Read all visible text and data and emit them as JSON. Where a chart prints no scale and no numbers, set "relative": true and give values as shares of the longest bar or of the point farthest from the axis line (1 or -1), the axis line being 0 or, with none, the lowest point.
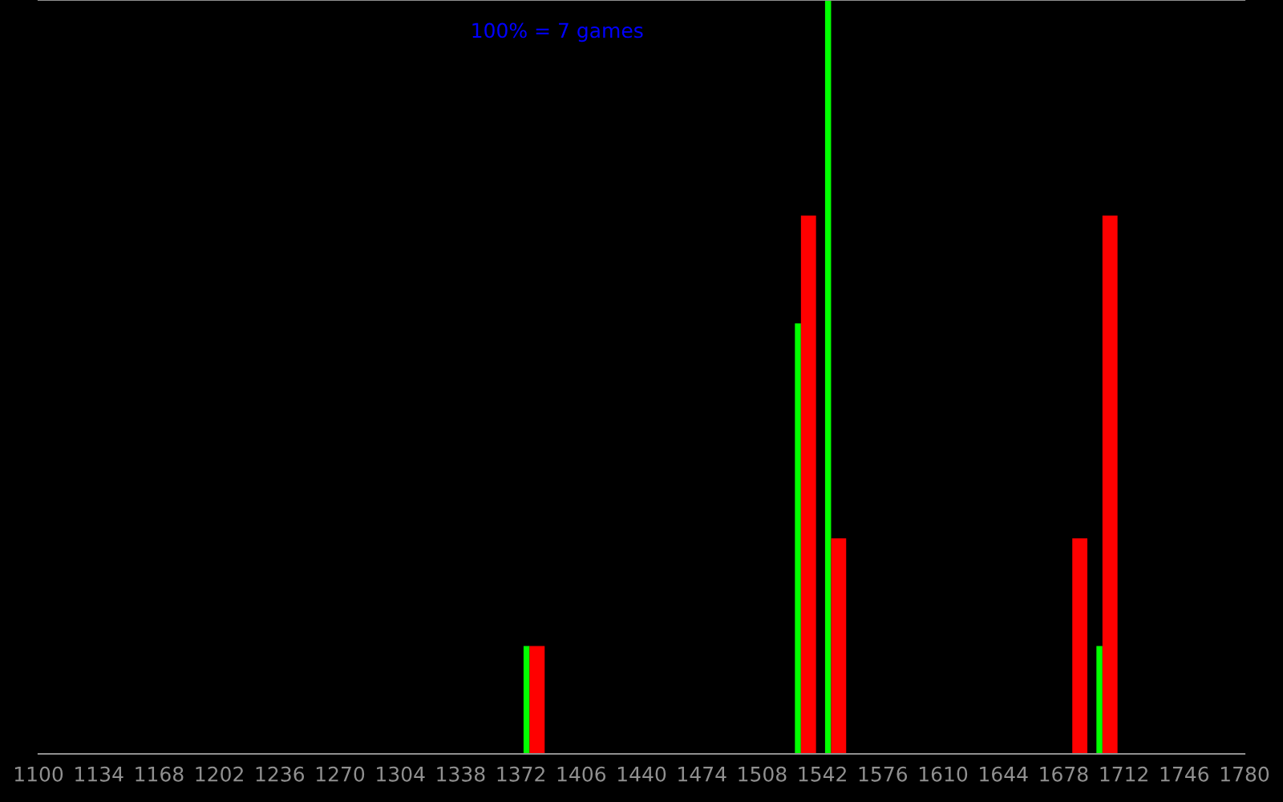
{
  "chart_data": {
    "type": "bar",
    "relative": true,
    "x": [
      1380.5,
      1533.5,
      1550.5,
      1686.5,
      1703.5
    ],
    "series": [
      {
        "color": "#00ff00",
        "values": [
          0.143,
          0.571,
          1,
          null,
          0.143
        ]
      },
      {
        "color": "#ff0000",
        "values": [
          0.143,
          0.714,
          0.286,
          0.286,
          0.714
        ]
      }
    ],
    "xlim": [
      1100,
      1780
    ],
    "xticks": [
      1100,
      1134,
      1168,
      1202,
      1236,
      1270,
      1304,
      1338,
      1372,
      1406,
      1440,
      1474,
      1508,
      1542,
      1576,
      1610,
      1644,
      1678,
      1712,
      1746,
      1780
    ],
    "annotations": [
      "100% = 7 games"
    ],
    "grid": false,
    "legend": false
  }
}
